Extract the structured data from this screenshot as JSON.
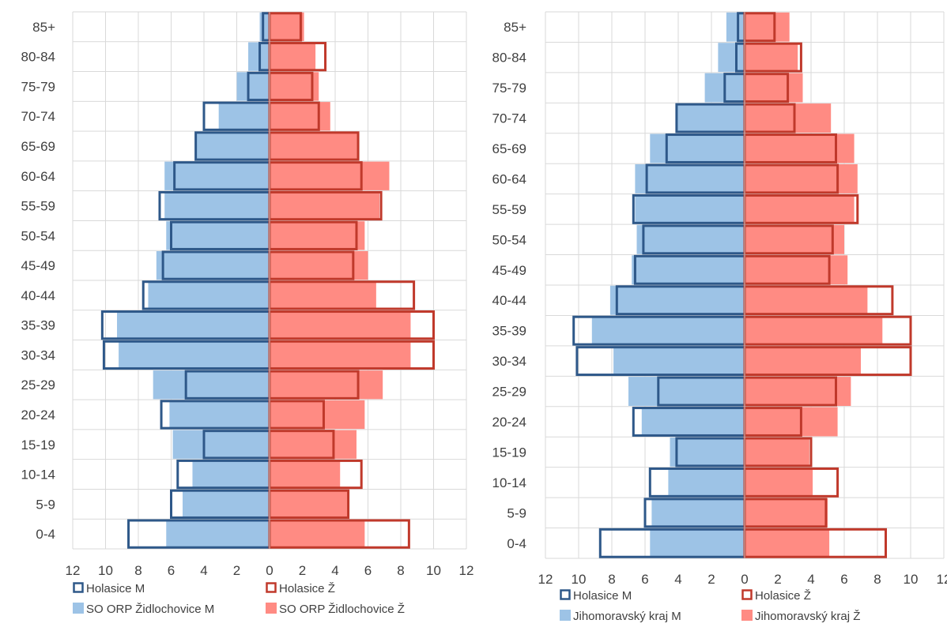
{
  "chart_data": [
    {
      "type": "bar",
      "categories": [
        "0-4",
        "5-9",
        "10-14",
        "15-19",
        "20-24",
        "25-29",
        "30-34",
        "35-39",
        "40-44",
        "45-49",
        "50-54",
        "55-59",
        "60-64",
        "65-69",
        "70-74",
        "75-79",
        "80-84",
        "85+"
      ],
      "xlim": [
        -12,
        12
      ],
      "x_ticks": [
        "12",
        "10",
        "8",
        "6",
        "4",
        "2",
        "0",
        "2",
        "4",
        "6",
        "8",
        "10",
        "12"
      ],
      "grid": true,
      "legend_position": "bottom",
      "series": [
        {
          "name": "SO ORP Židlochovice M",
          "style": "fill",
          "color": "#9dc3e6",
          "side": "left",
          "values": [
            6.3,
            5.3,
            4.7,
            5.9,
            6.1,
            7.1,
            9.2,
            9.3,
            7.4,
            6.9,
            6.3,
            6.4,
            6.4,
            4.5,
            3.1,
            2.0,
            1.3,
            0.6
          ]
        },
        {
          "name": "SO ORP Židlochovice Ž",
          "style": "fill",
          "color": "#ff8b83",
          "side": "right",
          "values": [
            5.8,
            4.8,
            4.3,
            5.3,
            5.8,
            6.9,
            8.6,
            8.6,
            6.5,
            6.0,
            5.8,
            6.7,
            7.3,
            5.4,
            3.7,
            3.0,
            2.8,
            2.1
          ]
        },
        {
          "name": "Holasice M",
          "style": "outline",
          "color": "#2e5889",
          "side": "left",
          "values": [
            8.6,
            6.0,
            5.6,
            4.0,
            6.6,
            5.1,
            10.1,
            10.2,
            7.7,
            6.5,
            6.0,
            6.7,
            5.8,
            4.5,
            4.0,
            1.3,
            0.6,
            0.4
          ]
        },
        {
          "name": "Holasice Ž",
          "style": "outline",
          "color": "#c0392b",
          "side": "right",
          "values": [
            8.5,
            4.8,
            5.6,
            3.9,
            3.3,
            5.4,
            10.0,
            10.0,
            8.8,
            5.1,
            5.3,
            6.8,
            5.6,
            5.4,
            3.0,
            2.6,
            3.4,
            1.9
          ]
        }
      ],
      "legend": [
        "Holasice M",
        "Holasice Ž",
        "SO ORP Židlochovice M",
        "SO ORP Židlochovice Ž"
      ]
    },
    {
      "type": "bar",
      "categories": [
        "0-4",
        "5-9",
        "10-14",
        "15-19",
        "20-24",
        "25-29",
        "30-34",
        "35-39",
        "40-44",
        "45-49",
        "50-54",
        "55-59",
        "60-64",
        "65-69",
        "70-74",
        "75-79",
        "80-84",
        "85+"
      ],
      "xlim": [
        -12,
        12
      ],
      "x_ticks": [
        "12",
        "10",
        "8",
        "6",
        "4",
        "2",
        "0",
        "2",
        "4",
        "6",
        "8",
        "10",
        "12"
      ],
      "grid": true,
      "legend_position": "bottom",
      "series": [
        {
          "name": "Jihomoravský kraj M",
          "style": "fill",
          "color": "#9dc3e6",
          "side": "left",
          "values": [
            5.7,
            5.6,
            4.6,
            4.5,
            6.2,
            7.0,
            7.9,
            9.2,
            8.1,
            6.8,
            6.5,
            6.6,
            6.6,
            5.7,
            4.1,
            2.4,
            1.6,
            1.1
          ]
        },
        {
          "name": "Jihomoravský kraj Ž",
          "style": "fill",
          "color": "#ff8b83",
          "side": "right",
          "values": [
            5.1,
            5.0,
            4.1,
            3.9,
            5.6,
            6.4,
            7.0,
            8.3,
            7.4,
            6.2,
            6.0,
            6.6,
            6.8,
            6.6,
            5.2,
            3.5,
            3.2,
            2.7
          ]
        },
        {
          "name": "Holasice M",
          "style": "outline",
          "color": "#2e5889",
          "side": "left",
          "values": [
            8.7,
            6.0,
            5.7,
            4.1,
            6.7,
            5.2,
            10.1,
            10.3,
            7.7,
            6.6,
            6.1,
            6.7,
            5.9,
            4.7,
            4.1,
            1.2,
            0.5,
            0.4
          ]
        },
        {
          "name": "Holasice Ž",
          "style": "outline",
          "color": "#c0392b",
          "side": "right",
          "values": [
            8.5,
            4.9,
            5.6,
            4.0,
            3.4,
            5.5,
            10.0,
            10.0,
            8.9,
            5.1,
            5.3,
            6.8,
            5.6,
            5.5,
            3.0,
            2.6,
            3.4,
            1.8
          ]
        }
      ],
      "legend": [
        "Holasice M",
        "Holasice Ž",
        "Jihomoravský kraj M",
        "Jihomoravský kraj Ž"
      ]
    }
  ]
}
